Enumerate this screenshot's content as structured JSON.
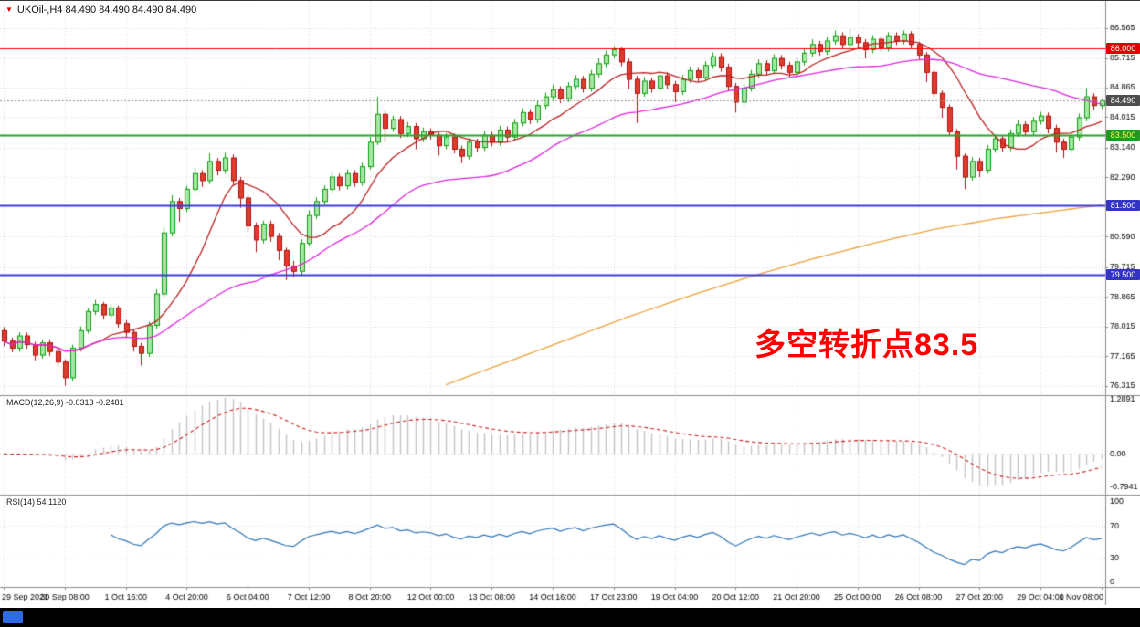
{
  "icons": {
    "chart_marker": "▼"
  },
  "chrome": {
    "top_border": "#3a3a3a",
    "taskbar_bg": "#000000",
    "taskbar_accent": "#2e6be6",
    "marker_color": "#cc0000"
  },
  "chart_data": {
    "type": "candlestick",
    "symbol": "UKOil-",
    "timeframe": "H4",
    "symbol_header": "UKOil-,H4 84.490 84.490 84.490 84.490",
    "current_price": 84.49,
    "label_every": 8,
    "time_labels": [
      "29 Sep 2021",
      "30 Sep 08:00",
      "1 Oct 16:00",
      "4 Oct 20:00",
      "6 Oct 04:00",
      "7 Oct 12:00",
      "8 Oct 20:00",
      "12 Oct 00:00",
      "13 Oct 08:00",
      "14 Oct 16:00",
      "17 Oct 23:00",
      "19 Oct 04:00",
      "20 Oct 12:00",
      "21 Oct 20:00",
      "25 Oct 00:00",
      "26 Oct 08:00",
      "27 Oct 20:00",
      "29 Oct 04:00",
      "1 Nov 08:00"
    ],
    "price_axis": {
      "ymax": 87.35,
      "ymin": 76.05
    },
    "price_ticks": [
      "86.565",
      "85.715",
      "84.865",
      "84.015",
      "83.140",
      "82.290",
      "80.590",
      "79.715",
      "78.865",
      "78.015",
      "77.165",
      "76.315"
    ],
    "price_lines": [
      {
        "value": 86.0,
        "label": "86.000",
        "color": "#ff0000",
        "width": 1,
        "style": "solid",
        "badge_bg": "#e00000",
        "badge_fg": "#ffffff"
      },
      {
        "value": 84.49,
        "label": "84.490",
        "color": "#9a9a9a",
        "width": 1,
        "style": "dot",
        "badge_bg": "#4d4d4d",
        "badge_fg": "#ffffff"
      },
      {
        "value": 83.5,
        "label": "83.500",
        "color": "#28a428",
        "width": 2,
        "style": "solid",
        "badge_bg": "#1f9a1f",
        "badge_fg": "#f3ff4d"
      },
      {
        "value": 81.5,
        "label": "81.500",
        "color": "#3c3cdc",
        "width": 2,
        "style": "solid",
        "badge_bg": "#3434c8",
        "badge_fg": "#ffffff"
      },
      {
        "value": 79.5,
        "label": "79.500",
        "color": "#3c3cdc",
        "width": 2,
        "style": "solid",
        "badge_bg": "#3434c8",
        "badge_fg": "#ffffff"
      }
    ],
    "colors": {
      "bg": "#ffffff",
      "grid": "#dcdcdc",
      "separator": "#8c8c8c",
      "axis_text": "#000000",
      "bull_fill": "#a6e7a6",
      "bull_stroke": "#0f9d0f",
      "bear_fill": "#e23b2e",
      "bear_stroke": "#aa1111"
    },
    "ma": {
      "fast": {
        "period": 10,
        "color": "#bb2222"
      },
      "slow": {
        "period": 34,
        "color": "#e026e0"
      },
      "long": {
        "color": "#eda33b",
        "points": [
          [
            58,
            76.35
          ],
          [
            66,
            77.0
          ],
          [
            74,
            77.65
          ],
          [
            82,
            78.3
          ],
          [
            90,
            78.9
          ],
          [
            98,
            79.45
          ],
          [
            106,
            79.95
          ],
          [
            114,
            80.4
          ],
          [
            122,
            80.8
          ],
          [
            130,
            81.1
          ],
          [
            137,
            81.3
          ],
          [
            144,
            81.5
          ]
        ]
      }
    },
    "macd": {
      "header": "MACD(12,26,9) -0.0313 -0.2481",
      "value": -0.0313,
      "signal_value": -0.2481,
      "range": {
        "max": 1.2891,
        "min": -0.7941
      },
      "axis": [
        {
          "v": 1.2891,
          "label": "1.2891"
        },
        {
          "v": 0,
          "label": "0.00"
        },
        {
          "v": -0.7941,
          "label": "-0.7941"
        }
      ],
      "hist_color": "#c4c4c4",
      "signal_color": "#cc2222"
    },
    "rsi": {
      "header": "RSI(14) 54.1120",
      "period": 14,
      "value": 54.112,
      "axis": [
        {
          "v": 100,
          "label": "100"
        },
        {
          "v": 70,
          "label": "70"
        },
        {
          "v": 30,
          "label": "30"
        },
        {
          "v": 0,
          "label": "0"
        }
      ],
      "levels": [
        70,
        30
      ],
      "color": "#2f75b5"
    },
    "annotation": {
      "text": "多空转折点83.5",
      "color": "#ff0000"
    },
    "candles": [
      [
        77.9,
        78.0,
        77.45,
        77.6
      ],
      [
        77.6,
        77.7,
        77.28,
        77.4
      ],
      [
        77.4,
        77.85,
        77.3,
        77.75
      ],
      [
        77.75,
        77.85,
        77.38,
        77.5
      ],
      [
        77.5,
        77.58,
        77.05,
        77.2
      ],
      [
        77.2,
        77.65,
        77.1,
        77.55
      ],
      [
        77.55,
        77.65,
        77.18,
        77.3
      ],
      [
        77.3,
        77.42,
        76.88,
        77.0
      ],
      [
        77.0,
        77.08,
        76.32,
        76.55
      ],
      [
        76.55,
        77.5,
        76.45,
        77.4
      ],
      [
        77.4,
        78.02,
        77.3,
        77.9
      ],
      [
        77.9,
        78.55,
        77.82,
        78.45
      ],
      [
        78.45,
        78.78,
        78.35,
        78.65
      ],
      [
        78.65,
        78.72,
        78.22,
        78.35
      ],
      [
        78.35,
        78.66,
        78.25,
        78.55
      ],
      [
        78.55,
        78.62,
        77.98,
        78.1
      ],
      [
        78.1,
        78.2,
        77.72,
        77.85
      ],
      [
        77.85,
        77.95,
        77.3,
        77.45
      ],
      [
        77.45,
        77.55,
        76.9,
        77.25
      ],
      [
        77.25,
        78.15,
        77.15,
        78.05
      ],
      [
        78.05,
        79.08,
        77.95,
        78.95
      ],
      [
        78.95,
        80.88,
        78.88,
        80.7
      ],
      [
        80.7,
        81.78,
        80.6,
        81.6
      ],
      [
        81.6,
        81.7,
        81.02,
        81.4
      ],
      [
        81.4,
        82.05,
        81.3,
        81.95
      ],
      [
        81.95,
        82.58,
        81.85,
        82.4
      ],
      [
        82.4,
        82.5,
        82.02,
        82.2
      ],
      [
        82.2,
        82.98,
        82.1,
        82.75
      ],
      [
        82.75,
        82.85,
        82.35,
        82.5
      ],
      [
        82.5,
        83.0,
        82.4,
        82.85
      ],
      [
        82.85,
        82.95,
        82.05,
        82.2
      ],
      [
        82.2,
        82.3,
        81.42,
        81.7
      ],
      [
        81.7,
        81.8,
        80.72,
        80.9
      ],
      [
        80.9,
        81.0,
        80.15,
        80.5
      ],
      [
        80.5,
        81.05,
        80.4,
        80.95
      ],
      [
        80.95,
        81.05,
        80.45,
        80.6
      ],
      [
        80.6,
        80.7,
        79.92,
        80.2
      ],
      [
        80.2,
        80.28,
        79.35,
        79.75
      ],
      [
        79.75,
        79.9,
        79.42,
        79.6
      ],
      [
        79.6,
        80.52,
        79.5,
        80.4
      ],
      [
        80.4,
        81.35,
        80.32,
        81.2
      ],
      [
        81.2,
        81.72,
        81.1,
        81.6
      ],
      [
        81.6,
        82.06,
        81.5,
        81.95
      ],
      [
        81.95,
        82.45,
        81.85,
        82.3
      ],
      [
        82.3,
        82.4,
        81.92,
        82.05
      ],
      [
        82.05,
        82.52,
        81.95,
        82.4
      ],
      [
        82.4,
        82.5,
        82.02,
        82.15
      ],
      [
        82.15,
        82.72,
        82.05,
        82.6
      ],
      [
        82.6,
        83.45,
        82.52,
        83.3
      ],
      [
        83.3,
        84.6,
        83.22,
        84.1
      ],
      [
        84.1,
        84.2,
        83.3,
        83.7
      ],
      [
        83.7,
        84.06,
        83.6,
        83.95
      ],
      [
        83.95,
        84.05,
        83.42,
        83.55
      ],
      [
        83.55,
        83.88,
        83.45,
        83.75
      ],
      [
        83.75,
        83.85,
        83.1,
        83.4
      ],
      [
        83.4,
        83.72,
        83.3,
        83.6
      ],
      [
        83.6,
        83.7,
        83.38,
        83.5
      ],
      [
        83.5,
        83.58,
        82.92,
        83.2
      ],
      [
        83.2,
        83.56,
        83.1,
        83.45
      ],
      [
        83.45,
        83.55,
        82.98,
        83.1
      ],
      [
        83.1,
        83.2,
        82.7,
        82.9
      ],
      [
        82.9,
        83.42,
        82.8,
        83.3
      ],
      [
        83.3,
        83.4,
        83.02,
        83.15
      ],
      [
        83.15,
        83.62,
        83.05,
        83.5
      ],
      [
        83.5,
        83.6,
        83.18,
        83.3
      ],
      [
        83.3,
        83.77,
        83.2,
        83.65
      ],
      [
        83.65,
        83.75,
        83.32,
        83.45
      ],
      [
        83.45,
        83.97,
        83.35,
        83.85
      ],
      [
        83.85,
        84.27,
        83.75,
        84.15
      ],
      [
        84.15,
        84.25,
        83.82,
        83.95
      ],
      [
        83.95,
        84.47,
        83.85,
        84.35
      ],
      [
        84.35,
        84.72,
        84.25,
        84.6
      ],
      [
        84.6,
        84.95,
        84.5,
        84.8
      ],
      [
        84.8,
        84.9,
        84.42,
        84.55
      ],
      [
        84.55,
        85.02,
        84.45,
        84.9
      ],
      [
        84.9,
        85.22,
        84.8,
        85.1
      ],
      [
        85.1,
        85.2,
        84.72,
        84.85
      ],
      [
        84.85,
        85.37,
        84.75,
        85.25
      ],
      [
        85.25,
        85.7,
        85.15,
        85.55
      ],
      [
        85.55,
        85.92,
        85.45,
        85.8
      ],
      [
        85.8,
        86.05,
        85.7,
        85.95
      ],
      [
        85.95,
        86.02,
        85.48,
        85.6
      ],
      [
        85.6,
        85.7,
        84.82,
        85.1
      ],
      [
        85.1,
        85.2,
        83.85,
        84.7
      ],
      [
        84.7,
        85.17,
        84.6,
        85.05
      ],
      [
        85.05,
        85.15,
        84.72,
        84.85
      ],
      [
        84.85,
        85.32,
        84.75,
        85.2
      ],
      [
        85.2,
        85.3,
        84.82,
        84.95
      ],
      [
        84.95,
        85.05,
        84.45,
        84.75
      ],
      [
        84.75,
        85.22,
        84.65,
        85.1
      ],
      [
        85.1,
        85.47,
        85.0,
        85.35
      ],
      [
        85.35,
        85.45,
        85.02,
        85.15
      ],
      [
        85.15,
        85.62,
        85.05,
        85.5
      ],
      [
        85.5,
        85.87,
        85.4,
        85.75
      ],
      [
        85.75,
        85.85,
        85.32,
        85.45
      ],
      [
        85.45,
        85.55,
        84.78,
        84.9
      ],
      [
        84.9,
        85.0,
        84.15,
        84.45
      ],
      [
        84.45,
        84.97,
        84.35,
        84.85
      ],
      [
        84.85,
        85.37,
        84.75,
        85.25
      ],
      [
        85.25,
        85.67,
        85.15,
        85.55
      ],
      [
        85.55,
        85.65,
        85.22,
        85.35
      ],
      [
        85.35,
        85.82,
        85.25,
        85.7
      ],
      [
        85.7,
        85.8,
        85.38,
        85.5
      ],
      [
        85.5,
        85.6,
        85.17,
        85.3
      ],
      [
        85.3,
        85.72,
        85.2,
        85.6
      ],
      [
        85.6,
        85.97,
        85.5,
        85.85
      ],
      [
        85.85,
        86.25,
        85.75,
        86.1
      ],
      [
        86.1,
        86.2,
        85.78,
        85.9
      ],
      [
        85.9,
        86.32,
        85.8,
        86.2
      ],
      [
        86.2,
        86.5,
        86.1,
        86.35
      ],
      [
        86.35,
        86.45,
        85.98,
        86.1
      ],
      [
        86.1,
        86.565,
        86.0,
        86.3
      ],
      [
        86.3,
        86.4,
        86.02,
        86.15
      ],
      [
        86.15,
        86.25,
        85.7,
        85.95
      ],
      [
        85.95,
        86.37,
        85.85,
        86.25
      ],
      [
        86.25,
        86.35,
        85.88,
        86.0
      ],
      [
        86.0,
        86.45,
        85.9,
        86.35
      ],
      [
        86.35,
        86.45,
        86.08,
        86.2
      ],
      [
        86.2,
        86.5,
        86.1,
        86.4
      ],
      [
        86.4,
        86.48,
        85.98,
        86.1
      ],
      [
        86.1,
        86.18,
        85.68,
        85.8
      ],
      [
        85.8,
        85.88,
        85.02,
        85.3
      ],
      [
        85.3,
        85.38,
        84.58,
        84.7
      ],
      [
        84.7,
        84.78,
        84.0,
        84.3
      ],
      [
        84.3,
        84.38,
        83.48,
        83.6
      ],
      [
        83.6,
        83.68,
        82.52,
        82.9
      ],
      [
        82.9,
        82.98,
        81.95,
        82.3
      ],
      [
        82.3,
        82.87,
        82.2,
        82.75
      ],
      [
        82.75,
        82.85,
        82.3,
        82.5
      ],
      [
        82.5,
        83.22,
        82.4,
        83.1
      ],
      [
        83.1,
        83.52,
        83.0,
        83.4
      ],
      [
        83.4,
        83.5,
        83.02,
        83.15
      ],
      [
        83.15,
        83.67,
        83.05,
        83.55
      ],
      [
        83.55,
        83.95,
        83.45,
        83.8
      ],
      [
        83.8,
        83.9,
        83.47,
        83.6
      ],
      [
        83.6,
        84.02,
        83.5,
        83.9
      ],
      [
        83.9,
        84.17,
        83.8,
        84.05
      ],
      [
        84.05,
        84.15,
        83.55,
        83.7
      ],
      [
        83.7,
        83.8,
        83.0,
        83.3
      ],
      [
        83.3,
        83.4,
        82.85,
        83.1
      ],
      [
        83.1,
        83.57,
        83.0,
        83.45
      ],
      [
        83.45,
        84.12,
        83.35,
        84.0
      ],
      [
        84.0,
        84.85,
        83.9,
        84.6
      ],
      [
        84.6,
        84.7,
        84.22,
        84.35
      ],
      [
        84.35,
        84.55,
        84.25,
        84.49
      ]
    ]
  }
}
